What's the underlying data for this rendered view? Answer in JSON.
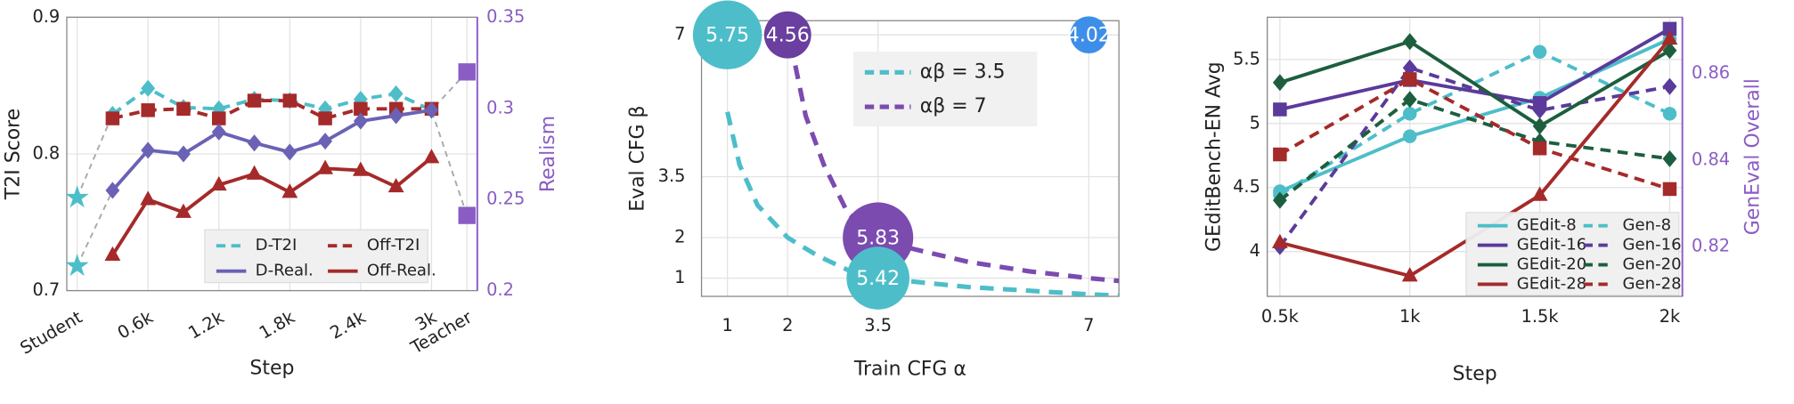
{
  "chart_data": [
    {
      "type": "line",
      "xlabel": "Step",
      "ylabel": "T2I Score",
      "y2label": "Realism",
      "y2color": "#8a5cc4",
      "categories": [
        "Student",
        null,
        "0.6k",
        null,
        "1.2k",
        null,
        "1.8k",
        null,
        "2.4k",
        null,
        "3k",
        "Teacher"
      ],
      "ylim": [
        0.7,
        0.9
      ],
      "yticks": [
        0.7,
        0.8,
        0.9
      ],
      "y2lim": [
        0.2,
        0.35
      ],
      "y2ticks": [
        0.2,
        0.25,
        0.3,
        0.35
      ],
      "grid": true,
      "legend": "lower right",
      "series": [
        {
          "name": "D-T2I",
          "color": "#4dbec9",
          "dash": true,
          "marker": "diamond",
          "values": [
            null,
            0.829,
            0.848,
            0.834,
            0.833,
            0.84,
            0.839,
            0.833,
            0.84,
            0.844,
            0.832,
            null
          ]
        },
        {
          "name": "Off-T2I",
          "color": "#a52a2a",
          "dash": true,
          "marker": "square",
          "values": [
            null,
            0.826,
            0.832,
            0.833,
            0.826,
            0.839,
            0.839,
            0.826,
            0.833,
            0.833,
            0.833,
            null
          ]
        },
        {
          "name": "D-Real.",
          "color": "#6a62b5",
          "dash": false,
          "marker": "diamond",
          "axis": "y2",
          "values": [
            null,
            0.255,
            0.277,
            0.275,
            0.287,
            0.281,
            0.276,
            0.282,
            0.293,
            0.296,
            0.299,
            null
          ]
        },
        {
          "name": "Off-Real.",
          "color": "#a52a2a",
          "dash": false,
          "marker": "triangle",
          "axis": "y2",
          "values": [
            null,
            0.2195,
            0.25,
            0.243,
            0.258,
            0.264,
            0.254,
            0.267,
            0.266,
            0.257,
            0.273,
            null
          ]
        },
        {
          "color": "#4dbec9",
          "marker": "star",
          "values": [
            0.768,
            null,
            null,
            null,
            null,
            null,
            null,
            null,
            null,
            null,
            null,
            null
          ]
        },
        {
          "color": "#4dbec9",
          "marker": "star",
          "axis": "y2",
          "values": [
            0.2135,
            null,
            null,
            null,
            null,
            null,
            null,
            null,
            null,
            null,
            null,
            null
          ]
        },
        {
          "color": "#8a5cc4",
          "marker": "square",
          "values": [
            null,
            null,
            null,
            null,
            null,
            null,
            null,
            null,
            null,
            null,
            null,
            0.755
          ]
        },
        {
          "color": "#8a5cc4",
          "marker": "square",
          "axis": "y2",
          "values": [
            null,
            null,
            null,
            null,
            null,
            null,
            null,
            null,
            null,
            null,
            null,
            0.32
          ]
        }
      ]
    },
    {
      "type": "bubble",
      "xlabel": "Train CFG α",
      "ylabel": "Eval CFG β",
      "xlim": [
        0.57,
        7.5
      ],
      "xticks": [
        1,
        2,
        3.5,
        7
      ],
      "ylim": [
        0.55,
        7.35
      ],
      "yticks": [
        1,
        2,
        3.5,
        7
      ],
      "grid": true,
      "legend": "upper center",
      "points": {
        "x": [
          1,
          2,
          7,
          3.5,
          3.5
        ],
        "y": [
          7,
          7,
          7,
          2,
          1
        ],
        "values": [
          5.75,
          4.56,
          4.02,
          5.83,
          5.42
        ],
        "colors": [
          "#4dbec9",
          "#6a3fa0",
          "#3d8ee8",
          "#7b4bb0",
          "#4dbec9"
        ]
      },
      "series": [
        {
          "name": "αβ = 3.5",
          "color": "#4dbec9",
          "x": [
            1,
            1.2,
            1.5,
            2,
            2.5,
            3,
            3.5,
            5,
            7,
            7.5
          ],
          "values": [
            5.1,
            3.8,
            2.8,
            2,
            1.55,
            1.2,
            1,
            0.78,
            0.6,
            0.57
          ]
        },
        {
          "name": "αβ = 7",
          "color": "#7b4bb0",
          "x": [
            2.05,
            2.3,
            2.6,
            3,
            3.5,
            4,
            5,
            6,
            7,
            7.5
          ],
          "values": [
            6.8,
            5,
            3.8,
            2.6,
            2,
            1.75,
            1.4,
            1.17,
            1,
            0.93
          ]
        }
      ]
    },
    {
      "type": "line",
      "xlabel": "Step",
      "ylabel": "GEditBench-EN Avg",
      "y2label": "GenEval Overall",
      "y2color": "#8a5cc4",
      "categories": [
        "0.5k",
        "1k",
        "1.5k",
        "2k"
      ],
      "ylim": [
        3.65,
        5.83
      ],
      "yticks": [
        4,
        4.5,
        5,
        5.5
      ],
      "y2lim": [
        0.8085,
        0.873
      ],
      "y2ticks": [
        0.82,
        0.84,
        0.86
      ],
      "grid": true,
      "legend": "lower right",
      "series": [
        {
          "name": "GEdit-8",
          "color": "#4dbec9",
          "dash": false,
          "marker": "circle",
          "values": [
            4.47,
            4.9,
            5.2,
            5.66
          ]
        },
        {
          "name": "Gen-8",
          "color": "#4dbec9",
          "dash": true,
          "marker": "circle",
          "axis": "y2",
          "values": [
            0.832,
            0.8507,
            0.865,
            0.8507
          ]
        },
        {
          "name": "GEdit-16",
          "color": "#5b3a9b",
          "dash": false,
          "marker": "square",
          "values": [
            5.11,
            5.34,
            5.16,
            5.74
          ]
        },
        {
          "name": "Gen-16",
          "color": "#5b3a9b",
          "dash": true,
          "marker": "diamond",
          "axis": "y2",
          "values": [
            0.82,
            0.8613,
            0.8515,
            0.857
          ]
        },
        {
          "name": "GEdit-20",
          "color": "#1d5e3e",
          "dash": false,
          "marker": "diamond",
          "values": [
            5.32,
            5.64,
            4.98,
            5.57
          ]
        },
        {
          "name": "Gen-20",
          "color": "#1d5e3e",
          "dash": true,
          "marker": "diamond",
          "axis": "y2",
          "values": [
            0.8307,
            0.854,
            0.8443,
            0.8403
          ]
        },
        {
          "name": "GEdit-28",
          "color": "#a52a2a",
          "dash": false,
          "marker": "triangle",
          "values": [
            4.07,
            3.81,
            4.44,
            5.66
          ]
        },
        {
          "name": "Gen-28",
          "color": "#a52a2a",
          "dash": true,
          "marker": "square",
          "axis": "y2",
          "values": [
            0.8413,
            0.8587,
            0.8427,
            0.8333
          ]
        }
      ]
    }
  ]
}
